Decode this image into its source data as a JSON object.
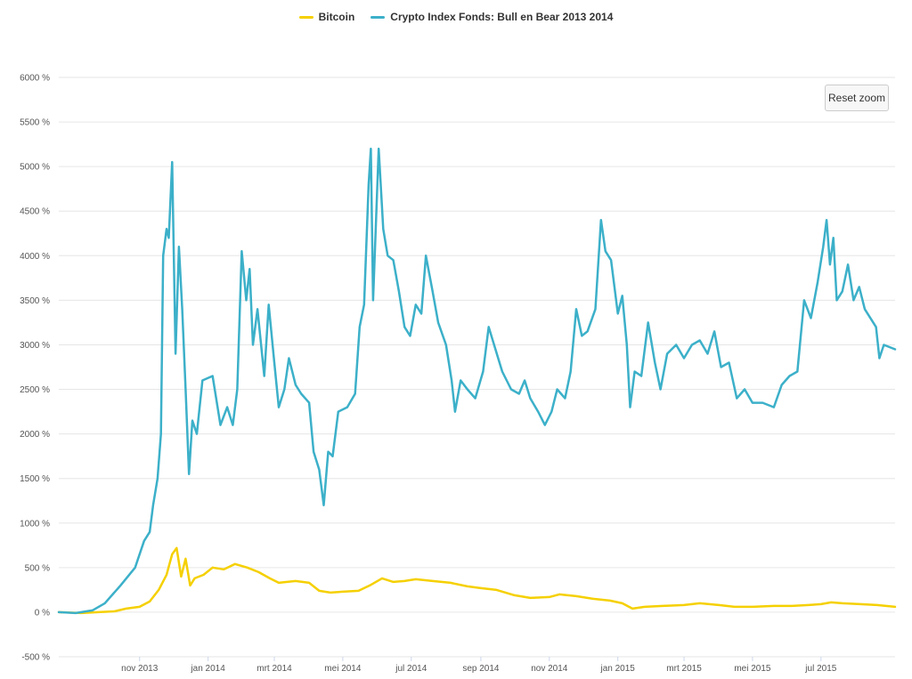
{
  "legend": {
    "items": [
      {
        "label": "Bitcoin",
        "color": "#f5d000"
      },
      {
        "label": "Crypto Index Fonds: Bull en Bear 2013 2014",
        "color": "#3cb0c9"
      }
    ]
  },
  "reset_zoom_label": "Reset zoom",
  "chart_data": {
    "type": "line",
    "title": "",
    "xlabel": "",
    "ylabel": "",
    "ylim": [
      -500,
      6000
    ],
    "y_ticks": [
      -500,
      0,
      500,
      1000,
      1500,
      2000,
      2500,
      3000,
      3500,
      4000,
      4500,
      5000,
      5500,
      6000
    ],
    "y_tick_labels": [
      "-500 %",
      "0 %",
      "500 %",
      "1000 %",
      "1500 %",
      "2000 %",
      "2500 %",
      "3000 %",
      "3500 %",
      "4000 %",
      "4500 %",
      "5000 %",
      "5500 %",
      "6000 %"
    ],
    "x_range": [
      "2013-08-21",
      "2015-09-05"
    ],
    "x_ticks": [
      "2013-11-01",
      "2014-01-01",
      "2014-03-01",
      "2014-05-01",
      "2014-07-01",
      "2014-09-01",
      "2014-11-01",
      "2015-01-01",
      "2015-03-01",
      "2015-05-01",
      "2015-07-01"
    ],
    "x_tick_labels": [
      "nov 2013",
      "jan 2014",
      "mrt 2014",
      "mei 2014",
      "jul 2014",
      "sep 2014",
      "nov 2014",
      "jan 2015",
      "mrt 2015",
      "mei 2015",
      "jul 2015"
    ],
    "grid": true,
    "legend_position": "top-center",
    "series": [
      {
        "name": "Bitcoin",
        "color": "#f5d000",
        "points": [
          [
            "2013-08-21",
            0
          ],
          [
            "2013-09-10",
            -10
          ],
          [
            "2013-09-25",
            0
          ],
          [
            "2013-10-10",
            10
          ],
          [
            "2013-10-20",
            40
          ],
          [
            "2013-11-01",
            60
          ],
          [
            "2013-11-10",
            120
          ],
          [
            "2013-11-18",
            250
          ],
          [
            "2013-11-25",
            420
          ],
          [
            "2013-11-30",
            650
          ],
          [
            "2013-12-04",
            720
          ],
          [
            "2013-12-08",
            400
          ],
          [
            "2013-12-12",
            600
          ],
          [
            "2013-12-16",
            300
          ],
          [
            "2013-12-20",
            380
          ],
          [
            "2013-12-28",
            420
          ],
          [
            "2014-01-05",
            500
          ],
          [
            "2014-01-15",
            480
          ],
          [
            "2014-01-25",
            540
          ],
          [
            "2014-02-05",
            500
          ],
          [
            "2014-02-15",
            450
          ],
          [
            "2014-02-25",
            380
          ],
          [
            "2014-03-05",
            330
          ],
          [
            "2014-03-20",
            350
          ],
          [
            "2014-04-01",
            330
          ],
          [
            "2014-04-10",
            240
          ],
          [
            "2014-04-20",
            220
          ],
          [
            "2014-05-01",
            230
          ],
          [
            "2014-05-15",
            240
          ],
          [
            "2014-05-25",
            300
          ],
          [
            "2014-06-05",
            380
          ],
          [
            "2014-06-15",
            340
          ],
          [
            "2014-06-25",
            350
          ],
          [
            "2014-07-05",
            370
          ],
          [
            "2014-07-20",
            350
          ],
          [
            "2014-08-05",
            330
          ],
          [
            "2014-08-20",
            290
          ],
          [
            "2014-09-01",
            270
          ],
          [
            "2014-09-15",
            250
          ],
          [
            "2014-10-01",
            190
          ],
          [
            "2014-10-15",
            160
          ],
          [
            "2014-11-01",
            170
          ],
          [
            "2014-11-10",
            200
          ],
          [
            "2014-11-25",
            180
          ],
          [
            "2014-12-10",
            150
          ],
          [
            "2014-12-25",
            130
          ],
          [
            "2015-01-05",
            100
          ],
          [
            "2015-01-14",
            40
          ],
          [
            "2015-01-25",
            60
          ],
          [
            "2015-02-10",
            70
          ],
          [
            "2015-03-01",
            80
          ],
          [
            "2015-03-15",
            100
          ],
          [
            "2015-04-01",
            80
          ],
          [
            "2015-04-15",
            60
          ],
          [
            "2015-05-01",
            60
          ],
          [
            "2015-05-20",
            70
          ],
          [
            "2015-06-05",
            70
          ],
          [
            "2015-06-20",
            80
          ],
          [
            "2015-07-01",
            90
          ],
          [
            "2015-07-10",
            110
          ],
          [
            "2015-07-20",
            100
          ],
          [
            "2015-08-05",
            90
          ],
          [
            "2015-08-20",
            80
          ],
          [
            "2015-09-05",
            60
          ]
        ]
      },
      {
        "name": "Crypto Index Fonds: Bull en Bear 2013 2014",
        "color": "#3cb0c9",
        "points": [
          [
            "2013-08-21",
            0
          ],
          [
            "2013-09-05",
            -10
          ],
          [
            "2013-09-20",
            20
          ],
          [
            "2013-10-01",
            100
          ],
          [
            "2013-10-15",
            300
          ],
          [
            "2013-10-28",
            500
          ],
          [
            "2013-11-05",
            800
          ],
          [
            "2013-11-10",
            900
          ],
          [
            "2013-11-13",
            1200
          ],
          [
            "2013-11-17",
            1500
          ],
          [
            "2013-11-20",
            2000
          ],
          [
            "2013-11-22",
            4000
          ],
          [
            "2013-11-25",
            4300
          ],
          [
            "2013-11-27",
            4200
          ],
          [
            "2013-11-30",
            5050
          ],
          [
            "2013-12-03",
            2900
          ],
          [
            "2013-12-06",
            4100
          ],
          [
            "2013-12-09",
            3400
          ],
          [
            "2013-12-12",
            2500
          ],
          [
            "2013-12-15",
            1550
          ],
          [
            "2013-12-18",
            2150
          ],
          [
            "2013-12-22",
            2000
          ],
          [
            "2013-12-27",
            2600
          ],
          [
            "2014-01-05",
            2650
          ],
          [
            "2014-01-12",
            2100
          ],
          [
            "2014-01-18",
            2300
          ],
          [
            "2014-01-23",
            2100
          ],
          [
            "2014-01-27",
            2500
          ],
          [
            "2014-01-31",
            4050
          ],
          [
            "2014-02-04",
            3500
          ],
          [
            "2014-02-07",
            3850
          ],
          [
            "2014-02-10",
            3000
          ],
          [
            "2014-02-14",
            3400
          ],
          [
            "2014-02-20",
            2650
          ],
          [
            "2014-02-24",
            3450
          ],
          [
            "2014-03-01",
            2800
          ],
          [
            "2014-03-05",
            2300
          ],
          [
            "2014-03-10",
            2500
          ],
          [
            "2014-03-14",
            2850
          ],
          [
            "2014-03-20",
            2550
          ],
          [
            "2014-03-25",
            2450
          ],
          [
            "2014-04-01",
            2350
          ],
          [
            "2014-04-05",
            1800
          ],
          [
            "2014-04-10",
            1600
          ],
          [
            "2014-04-14",
            1200
          ],
          [
            "2014-04-18",
            1800
          ],
          [
            "2014-04-22",
            1750
          ],
          [
            "2014-04-27",
            2250
          ],
          [
            "2014-05-05",
            2300
          ],
          [
            "2014-05-12",
            2450
          ],
          [
            "2014-05-16",
            3200
          ],
          [
            "2014-05-20",
            3450
          ],
          [
            "2014-05-24",
            4800
          ],
          [
            "2014-05-26",
            5200
          ],
          [
            "2014-05-28",
            3500
          ],
          [
            "2014-06-02",
            5200
          ],
          [
            "2014-06-06",
            4300
          ],
          [
            "2014-06-10",
            4000
          ],
          [
            "2014-06-15",
            3950
          ],
          [
            "2014-06-20",
            3600
          ],
          [
            "2014-06-25",
            3200
          ],
          [
            "2014-06-30",
            3100
          ],
          [
            "2014-07-05",
            3450
          ],
          [
            "2014-07-10",
            3350
          ],
          [
            "2014-07-14",
            4000
          ],
          [
            "2014-07-20",
            3600
          ],
          [
            "2014-07-25",
            3250
          ],
          [
            "2014-08-01",
            3000
          ],
          [
            "2014-08-06",
            2600
          ],
          [
            "2014-08-09",
            2250
          ],
          [
            "2014-08-14",
            2600
          ],
          [
            "2014-08-20",
            2500
          ],
          [
            "2014-08-27",
            2400
          ],
          [
            "2014-09-03",
            2700
          ],
          [
            "2014-09-08",
            3200
          ],
          [
            "2014-09-14",
            2950
          ],
          [
            "2014-09-20",
            2700
          ],
          [
            "2014-09-28",
            2500
          ],
          [
            "2014-10-05",
            2450
          ],
          [
            "2014-10-10",
            2600
          ],
          [
            "2014-10-15",
            2400
          ],
          [
            "2014-10-22",
            2250
          ],
          [
            "2014-10-28",
            2100
          ],
          [
            "2014-11-03",
            2250
          ],
          [
            "2014-11-08",
            2500
          ],
          [
            "2014-11-15",
            2400
          ],
          [
            "2014-11-20",
            2700
          ],
          [
            "2014-11-25",
            3400
          ],
          [
            "2014-11-30",
            3100
          ],
          [
            "2014-12-05",
            3150
          ],
          [
            "2014-12-12",
            3400
          ],
          [
            "2014-12-17",
            4400
          ],
          [
            "2014-12-21",
            4050
          ],
          [
            "2014-12-26",
            3950
          ],
          [
            "2015-01-01",
            3350
          ],
          [
            "2015-01-05",
            3550
          ],
          [
            "2015-01-09",
            3000
          ],
          [
            "2015-01-12",
            2300
          ],
          [
            "2015-01-16",
            2700
          ],
          [
            "2015-01-22",
            2650
          ],
          [
            "2015-01-28",
            3250
          ],
          [
            "2015-02-03",
            2800
          ],
          [
            "2015-02-08",
            2500
          ],
          [
            "2015-02-14",
            2900
          ],
          [
            "2015-02-22",
            3000
          ],
          [
            "2015-03-01",
            2850
          ],
          [
            "2015-03-08",
            3000
          ],
          [
            "2015-03-15",
            3050
          ],
          [
            "2015-03-22",
            2900
          ],
          [
            "2015-03-28",
            3150
          ],
          [
            "2015-04-03",
            2750
          ],
          [
            "2015-04-10",
            2800
          ],
          [
            "2015-04-17",
            2400
          ],
          [
            "2015-04-24",
            2500
          ],
          [
            "2015-05-01",
            2350
          ],
          [
            "2015-05-10",
            2350
          ],
          [
            "2015-05-20",
            2300
          ],
          [
            "2015-05-27",
            2550
          ],
          [
            "2015-06-03",
            2650
          ],
          [
            "2015-06-10",
            2700
          ],
          [
            "2015-06-16",
            3500
          ],
          [
            "2015-06-22",
            3300
          ],
          [
            "2015-06-28",
            3700
          ],
          [
            "2015-07-03",
            4100
          ],
          [
            "2015-07-06",
            4400
          ],
          [
            "2015-07-09",
            3900
          ],
          [
            "2015-07-12",
            4200
          ],
          [
            "2015-07-15",
            3500
          ],
          [
            "2015-07-20",
            3600
          ],
          [
            "2015-07-25",
            3900
          ],
          [
            "2015-07-30",
            3500
          ],
          [
            "2015-08-04",
            3650
          ],
          [
            "2015-08-09",
            3400
          ],
          [
            "2015-08-14",
            3300
          ],
          [
            "2015-08-19",
            3200
          ],
          [
            "2015-08-22",
            2850
          ],
          [
            "2015-08-26",
            3000
          ],
          [
            "2015-09-05",
            2950
          ]
        ]
      }
    ]
  }
}
